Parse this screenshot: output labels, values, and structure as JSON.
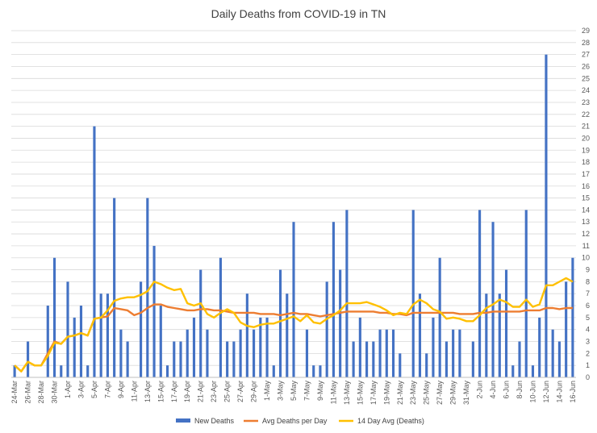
{
  "chart_data": {
    "type": "bar",
    "title": "Daily Deaths from COVID-19 in TN",
    "xlabel": "",
    "ylabel": "",
    "ylim": [
      0,
      29
    ],
    "ytick_step": 1,
    "grid": true,
    "legend_position": "bottom",
    "categories": [
      "24-Mar",
      "25-Mar",
      "26-Mar",
      "27-Mar",
      "28-Mar",
      "29-Mar",
      "30-Mar",
      "31-Mar",
      "1-Apr",
      "2-Apr",
      "3-Apr",
      "4-Apr",
      "5-Apr",
      "6-Apr",
      "7-Apr",
      "8-Apr",
      "9-Apr",
      "10-Apr",
      "11-Apr",
      "12-Apr",
      "13-Apr",
      "14-Apr",
      "15-Apr",
      "16-Apr",
      "17-Apr",
      "18-Apr",
      "19-Apr",
      "20-Apr",
      "21-Apr",
      "22-Apr",
      "23-Apr",
      "24-Apr",
      "25-Apr",
      "26-Apr",
      "27-Apr",
      "28-Apr",
      "29-Apr",
      "30-Apr",
      "1-May",
      "2-May",
      "3-May",
      "4-May",
      "5-May",
      "6-May",
      "7-May",
      "8-May",
      "9-May",
      "10-May",
      "11-May",
      "12-May",
      "13-May",
      "14-May",
      "15-May",
      "16-May",
      "17-May",
      "18-May",
      "19-May",
      "20-May",
      "21-May",
      "22-May",
      "23-May",
      "24-May",
      "25-May",
      "26-May",
      "27-May",
      "28-May",
      "29-May",
      "30-May",
      "31-May",
      "1-Jun",
      "2-Jun",
      "3-Jun",
      "4-Jun",
      "5-Jun",
      "6-Jun",
      "7-Jun",
      "8-Jun",
      "9-Jun",
      "10-Jun",
      "11-Jun",
      "12-Jun",
      "13-Jun",
      "14-Jun",
      "15-Jun",
      "16-Jun"
    ],
    "x_tick_labels": [
      "24-Mar",
      "26-Mar",
      "28-Mar",
      "30-Mar",
      "1-Apr",
      "3-Apr",
      "5-Apr",
      "7-Apr",
      "9-Apr",
      "11-Apr",
      "13-Apr",
      "15-Apr",
      "17-Apr",
      "19-Apr",
      "21-Apr",
      "23-Apr",
      "25-Apr",
      "27-Apr",
      "29-Apr",
      "1-May",
      "3-May",
      "5-May",
      "7-May",
      "9-May",
      "11-May",
      "13-May",
      "15-May",
      "17-May",
      "19-May",
      "21-May",
      "23-May",
      "25-May",
      "27-May",
      "29-May",
      "31-May",
      "2-Jun",
      "4-Jun",
      "6-Jun",
      "8-Jun",
      "10-Jun",
      "12-Jun",
      "14-Jun",
      "16-Jun"
    ],
    "series": [
      {
        "name": "New Deaths",
        "kind": "bar",
        "color": "#4472C4",
        "values": [
          1,
          0,
          3,
          0,
          0,
          6,
          10,
          1,
          8,
          5,
          6,
          1,
          21,
          7,
          7,
          15,
          4,
          3,
          0,
          8,
          15,
          11,
          6,
          1,
          3,
          3,
          4,
          5,
          9,
          4,
          0,
          10,
          3,
          3,
          4,
          7,
          4,
          5,
          5,
          1,
          9,
          7,
          13,
          0,
          4,
          1,
          1,
          8,
          13,
          9,
          14,
          3,
          5,
          3,
          3,
          4,
          4,
          4,
          2,
          0,
          14,
          7,
          2,
          5,
          10,
          3,
          4,
          4,
          0,
          3,
          14,
          7,
          13,
          7,
          9,
          1,
          3,
          14,
          1,
          5,
          27,
          4,
          3,
          8,
          10
        ]
      },
      {
        "name": "Avg Deaths per Day",
        "kind": "line",
        "color": "#ED7D31",
        "values": [
          1.0,
          0.5,
          1.3,
          1.0,
          1.0,
          2.0,
          3.0,
          2.8,
          3.4,
          3.5,
          3.7,
          3.5,
          4.9,
          5.0,
          5.1,
          5.8,
          5.7,
          5.6,
          5.2,
          5.4,
          5.8,
          6.1,
          6.1,
          5.9,
          5.8,
          5.7,
          5.6,
          5.6,
          5.7,
          5.7,
          5.6,
          5.6,
          5.5,
          5.4,
          5.4,
          5.4,
          5.4,
          5.3,
          5.3,
          5.3,
          5.2,
          5.3,
          5.4,
          5.3,
          5.3,
          5.2,
          5.1,
          5.2,
          5.3,
          5.4,
          5.5,
          5.5,
          5.5,
          5.5,
          5.5,
          5.4,
          5.4,
          5.3,
          5.3,
          5.2,
          5.4,
          5.4,
          5.4,
          5.4,
          5.4,
          5.4,
          5.4,
          5.3,
          5.3,
          5.3,
          5.4,
          5.4,
          5.5,
          5.5,
          5.5,
          5.5,
          5.5,
          5.6,
          5.6,
          5.6,
          5.8,
          5.8,
          5.7,
          5.8,
          5.8
        ]
      },
      {
        "name": "14 Day Avg (Deaths)",
        "kind": "line",
        "color": "#FFC000",
        "values": [
          1.0,
          0.5,
          1.3,
          1.0,
          1.0,
          1.8,
          2.9,
          2.8,
          3.4,
          3.5,
          3.7,
          3.5,
          4.9,
          5.0,
          5.6,
          6.4,
          6.6,
          6.7,
          6.7,
          6.9,
          7.2,
          8.0,
          7.8,
          7.5,
          7.3,
          7.4,
          6.2,
          6.0,
          6.2,
          5.3,
          5.0,
          5.4,
          5.7,
          5.4,
          4.6,
          4.3,
          4.2,
          4.4,
          4.5,
          4.5,
          4.7,
          4.9,
          5.1,
          4.7,
          5.2,
          4.6,
          4.5,
          4.9,
          5.2,
          5.6,
          6.2,
          6.2,
          6.2,
          6.3,
          6.1,
          5.9,
          5.6,
          5.2,
          5.4,
          5.3,
          6.1,
          6.5,
          6.2,
          5.7,
          5.5,
          4.9,
          5.0,
          4.9,
          4.7,
          4.7,
          5.2,
          5.8,
          6.1,
          6.5,
          6.3,
          5.9,
          5.9,
          6.5,
          5.9,
          6.1,
          7.7,
          7.7,
          8.0,
          8.3,
          8.0
        ]
      }
    ]
  }
}
